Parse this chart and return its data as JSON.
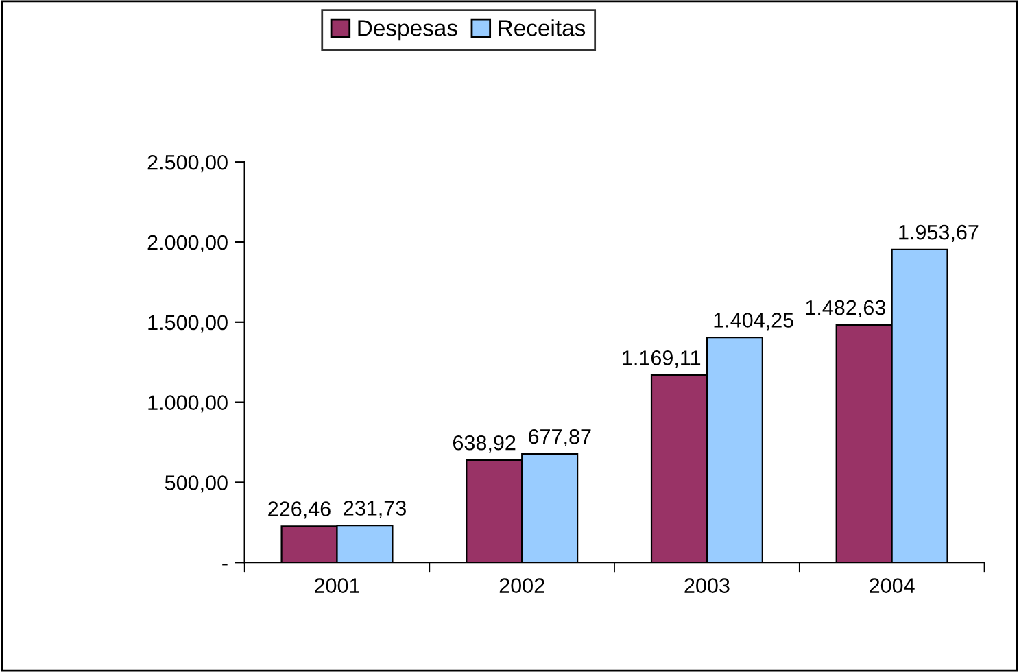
{
  "chart_data": {
    "type": "bar",
    "categories": [
      "2001",
      "2002",
      "2003",
      "2004"
    ],
    "series": [
      {
        "name": "Despesas",
        "color": "#993366",
        "values": [
          226.46,
          638.92,
          1169.11,
          1482.63
        ],
        "value_labels": [
          "226,46",
          "638,92",
          "1.169,11",
          "1.482,63"
        ]
      },
      {
        "name": "Receitas",
        "color": "#99ccff",
        "values": [
          231.73,
          677.87,
          1404.25,
          1953.67
        ],
        "value_labels": [
          "231,73",
          "677,87",
          "1.404,25",
          "1.953,67"
        ]
      }
    ],
    "ylim": [
      0,
      2500
    ],
    "yticks": [
      {
        "value": 0,
        "label": "-"
      },
      {
        "value": 500,
        "label": "500,00"
      },
      {
        "value": 1000,
        "label": "1.000,00"
      },
      {
        "value": 1500,
        "label": "1.500,00"
      },
      {
        "value": 2000,
        "label": "2.000,00"
      },
      {
        "value": 2500,
        "label": "2.500,00"
      }
    ],
    "legend": "top",
    "grid": false
  }
}
